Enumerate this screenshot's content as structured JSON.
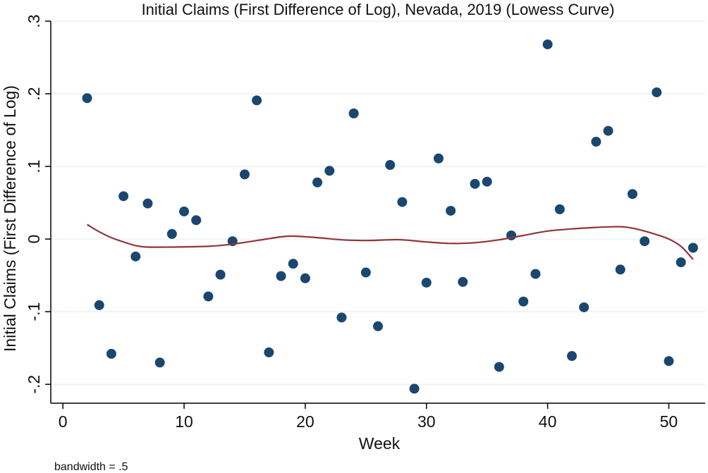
{
  "chart_data": {
    "type": "scatter",
    "title": "Initial Claims (First Difference of Log), Nevada, 2019 (Lowess Curve)",
    "xlabel": "Week",
    "ylabel": "Initial Claims (First Difference of Log)",
    "note": "bandwidth = .5",
    "xlim": [
      -1,
      53
    ],
    "ylim": [
      -0.226,
      0.3
    ],
    "xticks": [
      0,
      10,
      20,
      30,
      40,
      50
    ],
    "xtick_labels": [
      "0",
      "10",
      "20",
      "30",
      "40",
      "50"
    ],
    "yticks": [
      0.3,
      0.2,
      0.1,
      0,
      -0.1,
      -0.2
    ],
    "ytick_labels": [
      ".3",
      ".2",
      ".1",
      "0",
      "-.1",
      "-.2"
    ],
    "grid": true,
    "colors": {
      "points": "#1a476f",
      "lowess": "#90353b",
      "grid": "#eaf2f3"
    },
    "points": [
      {
        "x": 2,
        "y": 0.194
      },
      {
        "x": 3,
        "y": -0.091
      },
      {
        "x": 4,
        "y": -0.158
      },
      {
        "x": 5,
        "y": 0.059
      },
      {
        "x": 6,
        "y": -0.024
      },
      {
        "x": 7,
        "y": 0.049
      },
      {
        "x": 8,
        "y": -0.17
      },
      {
        "x": 9,
        "y": 0.007
      },
      {
        "x": 10,
        "y": 0.038
      },
      {
        "x": 11,
        "y": 0.026
      },
      {
        "x": 12,
        "y": -0.079
      },
      {
        "x": 13,
        "y": -0.049
      },
      {
        "x": 14,
        "y": -0.003
      },
      {
        "x": 15,
        "y": 0.089
      },
      {
        "x": 16,
        "y": 0.191
      },
      {
        "x": 17,
        "y": -0.156
      },
      {
        "x": 18,
        "y": -0.051
      },
      {
        "x": 19,
        "y": -0.034
      },
      {
        "x": 20,
        "y": -0.054
      },
      {
        "x": 21,
        "y": 0.078
      },
      {
        "x": 22,
        "y": 0.094
      },
      {
        "x": 23,
        "y": -0.108
      },
      {
        "x": 24,
        "y": 0.173
      },
      {
        "x": 25,
        "y": -0.046
      },
      {
        "x": 26,
        "y": -0.12
      },
      {
        "x": 27,
        "y": 0.102
      },
      {
        "x": 28,
        "y": 0.051
      },
      {
        "x": 29,
        "y": -0.206
      },
      {
        "x": 30,
        "y": -0.06
      },
      {
        "x": 31,
        "y": 0.111
      },
      {
        "x": 32,
        "y": 0.039
      },
      {
        "x": 33,
        "y": -0.059
      },
      {
        "x": 34,
        "y": 0.076
      },
      {
        "x": 35,
        "y": 0.079
      },
      {
        "x": 36,
        "y": -0.176
      },
      {
        "x": 37,
        "y": 0.005
      },
      {
        "x": 38,
        "y": -0.086
      },
      {
        "x": 39,
        "y": -0.048
      },
      {
        "x": 40,
        "y": 0.268
      },
      {
        "x": 41,
        "y": 0.041
      },
      {
        "x": 42,
        "y": -0.161
      },
      {
        "x": 43,
        "y": -0.094
      },
      {
        "x": 44,
        "y": 0.134
      },
      {
        "x": 45,
        "y": 0.149
      },
      {
        "x": 46,
        "y": -0.042
      },
      {
        "x": 47,
        "y": 0.062
      },
      {
        "x": 48,
        "y": -0.003
      },
      {
        "x": 49,
        "y": 0.202
      },
      {
        "x": 50,
        "y": -0.168
      },
      {
        "x": 51,
        "y": -0.032
      },
      {
        "x": 52,
        "y": -0.012
      }
    ],
    "lowess": [
      {
        "x": 2,
        "y": 0.02
      },
      {
        "x": 3,
        "y": 0.01
      },
      {
        "x": 4,
        "y": 0.002
      },
      {
        "x": 5,
        "y": -0.004
      },
      {
        "x": 6,
        "y": -0.009
      },
      {
        "x": 7,
        "y": -0.011
      },
      {
        "x": 9,
        "y": -0.011
      },
      {
        "x": 12,
        "y": -0.01
      },
      {
        "x": 14,
        "y": -0.007
      },
      {
        "x": 16,
        "y": -0.002
      },
      {
        "x": 18,
        "y": 0.003
      },
      {
        "x": 19,
        "y": 0.004
      },
      {
        "x": 21,
        "y": 0.002
      },
      {
        "x": 23,
        "y": -0.001
      },
      {
        "x": 25,
        "y": -0.002
      },
      {
        "x": 27,
        "y": -0.001
      },
      {
        "x": 28,
        "y": -0.001
      },
      {
        "x": 30,
        "y": -0.004
      },
      {
        "x": 32,
        "y": -0.006
      },
      {
        "x": 34,
        "y": -0.005
      },
      {
        "x": 36,
        "y": -0.001
      },
      {
        "x": 38,
        "y": 0.005
      },
      {
        "x": 40,
        "y": 0.011
      },
      {
        "x": 42,
        "y": 0.014
      },
      {
        "x": 44,
        "y": 0.016
      },
      {
        "x": 46,
        "y": 0.017
      },
      {
        "x": 47,
        "y": 0.015
      },
      {
        "x": 48,
        "y": 0.011
      },
      {
        "x": 49,
        "y": 0.006
      },
      {
        "x": 50,
        "y": 0.0
      },
      {
        "x": 51,
        "y": -0.01
      },
      {
        "x": 52,
        "y": -0.028
      }
    ]
  }
}
